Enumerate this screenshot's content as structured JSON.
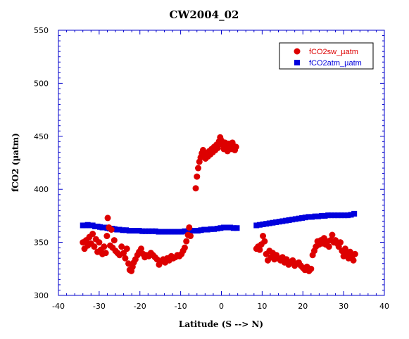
{
  "chart_data": {
    "type": "scatter",
    "title": "CW2004_02",
    "xlabel": "Latitude (S --> N)",
    "ylabel": "fCO2 (µatm)",
    "xlim": [
      -40,
      40
    ],
    "ylim": [
      300,
      550
    ],
    "xticks": [
      -40,
      -30,
      -20,
      -10,
      0,
      10,
      20,
      30,
      40
    ],
    "yticks": [
      300,
      350,
      400,
      450,
      500,
      550
    ],
    "grid": false,
    "legend_position": "top-right",
    "series": [
      {
        "name": "fCO2sw_µatm",
        "color": "#dd0000",
        "marker": "circle",
        "points": [
          [
            -34,
            350
          ],
          [
            -33.6,
            344
          ],
          [
            -33.2,
            352
          ],
          [
            -32.8,
            347
          ],
          [
            -32.4,
            355
          ],
          [
            -32,
            349
          ],
          [
            -31.6,
            358
          ],
          [
            -31.2,
            346
          ],
          [
            -30.8,
            353
          ],
          [
            -30.4,
            341
          ],
          [
            -30,
            350
          ],
          [
            -29.6,
            343
          ],
          [
            -29.2,
            339
          ],
          [
            -28.8,
            346
          ],
          [
            -28.4,
            340
          ],
          [
            -28.1,
            356
          ],
          [
            -27.9,
            373
          ],
          [
            -27.6,
            364
          ],
          [
            -27.3,
            347
          ],
          [
            -27,
            362
          ],
          [
            -26.7,
            345
          ],
          [
            -26.3,
            352
          ],
          [
            -26,
            342
          ],
          [
            -25.5,
            340
          ],
          [
            -25,
            338
          ],
          [
            -24.5,
            346
          ],
          [
            -24,
            340
          ],
          [
            -23.6,
            335
          ],
          [
            -23.2,
            344
          ],
          [
            -22.8,
            330
          ],
          [
            -22.5,
            324
          ],
          [
            -22.1,
            323
          ],
          [
            -21.8,
            327
          ],
          [
            -21.5,
            331
          ],
          [
            -21.1,
            334
          ],
          [
            -20.6,
            338
          ],
          [
            -20.2,
            341
          ],
          [
            -19.7,
            344
          ],
          [
            -19.2,
            339
          ],
          [
            -18.8,
            336
          ],
          [
            -18.3,
            338
          ],
          [
            -17.8,
            337
          ],
          [
            -17.3,
            340
          ],
          [
            -16.8,
            338
          ],
          [
            -16.3,
            336
          ],
          [
            -15.8,
            334
          ],
          [
            -15.3,
            329
          ],
          [
            -14.8,
            332
          ],
          [
            -14.3,
            334
          ],
          [
            -13.8,
            331
          ],
          [
            -13.3,
            335
          ],
          [
            -12.8,
            333
          ],
          [
            -12.3,
            337
          ],
          [
            -11.8,
            335
          ],
          [
            -11.3,
            336
          ],
          [
            -10.8,
            338
          ],
          [
            -10.3,
            337
          ],
          [
            -9.8,
            339
          ],
          [
            -9.4,
            342
          ],
          [
            -9,
            345
          ],
          [
            -8.6,
            351
          ],
          [
            -8.2,
            357
          ],
          [
            -7.9,
            364
          ],
          [
            -7.6,
            356
          ],
          [
            -6.3,
            401
          ],
          [
            -6,
            412
          ],
          [
            -5.7,
            420
          ],
          [
            -5.4,
            426
          ],
          [
            -5.1,
            430
          ],
          [
            -4.8,
            434
          ],
          [
            -4.5,
            437
          ],
          [
            -4.2,
            432
          ],
          [
            -3.9,
            429
          ],
          [
            -3.6,
            434
          ],
          [
            -3.3,
            431
          ],
          [
            -3,
            436
          ],
          [
            -2.7,
            433
          ],
          [
            -2.4,
            438
          ],
          [
            -2.1,
            435
          ],
          [
            -1.8,
            440
          ],
          [
            -1.5,
            437
          ],
          [
            -1.2,
            442
          ],
          [
            -0.9,
            439
          ],
          [
            -0.6,
            445
          ],
          [
            -0.3,
            449
          ],
          [
            0,
            446
          ],
          [
            0.3,
            442
          ],
          [
            0.6,
            438
          ],
          [
            0.9,
            444
          ],
          [
            1.2,
            440
          ],
          [
            1.5,
            436
          ],
          [
            1.8,
            443
          ],
          [
            2.1,
            441
          ],
          [
            2.4,
            438
          ],
          [
            2.7,
            444
          ],
          [
            3,
            441
          ],
          [
            3.3,
            437
          ],
          [
            3.6,
            440
          ],
          [
            8.6,
            344
          ],
          [
            9,
            346
          ],
          [
            9.4,
            343
          ],
          [
            9.8,
            348
          ],
          [
            10.2,
            356
          ],
          [
            10.6,
            351
          ],
          [
            11,
            339
          ],
          [
            11.4,
            333
          ],
          [
            11.8,
            342
          ],
          [
            12.2,
            336
          ],
          [
            12.6,
            340
          ],
          [
            13,
            334
          ],
          [
            13.5,
            338
          ],
          [
            14,
            335
          ],
          [
            14.5,
            333
          ],
          [
            15,
            336
          ],
          [
            15.5,
            331
          ],
          [
            16,
            334
          ],
          [
            16.5,
            329
          ],
          [
            17,
            331
          ],
          [
            17.5,
            333
          ],
          [
            18,
            328
          ],
          [
            18.5,
            330
          ],
          [
            19,
            331
          ],
          [
            19.5,
            328
          ],
          [
            20,
            326
          ],
          [
            20.5,
            324
          ],
          [
            21,
            327
          ],
          [
            21.5,
            323
          ],
          [
            22,
            325
          ],
          [
            22.4,
            338
          ],
          [
            22.8,
            342
          ],
          [
            23.2,
            346
          ],
          [
            23.6,
            351
          ],
          [
            24,
            348
          ],
          [
            24.4,
            352
          ],
          [
            24.8,
            349
          ],
          [
            25.2,
            354
          ],
          [
            25.6,
            348
          ],
          [
            26,
            351
          ],
          [
            26.4,
            346
          ],
          [
            26.8,
            352
          ],
          [
            27.2,
            357
          ],
          [
            27.6,
            350
          ],
          [
            28,
            352
          ],
          [
            28.4,
            349
          ],
          [
            28.8,
            346
          ],
          [
            29.2,
            350
          ],
          [
            29.6,
            342
          ],
          [
            30,
            337
          ],
          [
            30.4,
            344
          ],
          [
            30.8,
            339
          ],
          [
            31.2,
            335
          ],
          [
            31.6,
            341
          ],
          [
            32,
            336
          ],
          [
            32.4,
            333
          ],
          [
            32.8,
            339
          ]
        ]
      },
      {
        "name": "fCO2atm_µatm",
        "color": "#0000dd",
        "marker": "square",
        "points": [
          [
            -34,
            366
          ],
          [
            -33.4,
            366
          ],
          [
            -32.8,
            366.5
          ],
          [
            -32.2,
            366
          ],
          [
            -31.6,
            366
          ],
          [
            -31,
            365
          ],
          [
            -30.4,
            365
          ],
          [
            -29.8,
            364.5
          ],
          [
            -29.2,
            364
          ],
          [
            -28.6,
            364
          ],
          [
            -28,
            363.5
          ],
          [
            -27.4,
            363
          ],
          [
            -26.8,
            363
          ],
          [
            -26.2,
            362.5
          ],
          [
            -25.6,
            362
          ],
          [
            -25,
            362
          ],
          [
            -24.2,
            361.5
          ],
          [
            -23.4,
            361.5
          ],
          [
            -22.6,
            361
          ],
          [
            -21.8,
            361
          ],
          [
            -21,
            361
          ],
          [
            -20.2,
            361
          ],
          [
            -19.4,
            360.5
          ],
          [
            -18.6,
            360.5
          ],
          [
            -17.8,
            360.5
          ],
          [
            -17,
            360.5
          ],
          [
            -16.2,
            360.5
          ],
          [
            -15.4,
            360
          ],
          [
            -14.6,
            360
          ],
          [
            -13.8,
            360
          ],
          [
            -13,
            360
          ],
          [
            -12.2,
            360
          ],
          [
            -11.4,
            360
          ],
          [
            -10.6,
            360
          ],
          [
            -9.8,
            360
          ],
          [
            -9,
            360.5
          ],
          [
            -8.2,
            360.5
          ],
          [
            -7.4,
            361
          ],
          [
            -6.6,
            361
          ],
          [
            -5.8,
            361
          ],
          [
            -5,
            361.5
          ],
          [
            -4.2,
            362
          ],
          [
            -3.4,
            362
          ],
          [
            -2.6,
            362.5
          ],
          [
            -1.8,
            362.5
          ],
          [
            -1,
            363
          ],
          [
            -0.2,
            363.5
          ],
          [
            0.6,
            364
          ],
          [
            1.4,
            364
          ],
          [
            2.2,
            364
          ],
          [
            3,
            363.5
          ],
          [
            3.8,
            363.5
          ],
          [
            8.6,
            366
          ],
          [
            9.4,
            366.5
          ],
          [
            10.2,
            367
          ],
          [
            11,
            367.5
          ],
          [
            11.8,
            368
          ],
          [
            12.6,
            368.5
          ],
          [
            13.4,
            369
          ],
          [
            14.2,
            369.5
          ],
          [
            15,
            370
          ],
          [
            15.8,
            370.5
          ],
          [
            16.6,
            371
          ],
          [
            17.4,
            371.5
          ],
          [
            18.2,
            372
          ],
          [
            19,
            372.5
          ],
          [
            19.8,
            373
          ],
          [
            20.6,
            373.5
          ],
          [
            21.4,
            374
          ],
          [
            22.2,
            374
          ],
          [
            23,
            374.5
          ],
          [
            23.8,
            374.5
          ],
          [
            24.6,
            375
          ],
          [
            25.4,
            375
          ],
          [
            26.2,
            375.5
          ],
          [
            27,
            375.5
          ],
          [
            27.8,
            375.5
          ],
          [
            28.6,
            375.5
          ],
          [
            29.4,
            375.5
          ],
          [
            30.2,
            375.5
          ],
          [
            31,
            375.5
          ],
          [
            31.8,
            376
          ],
          [
            32.6,
            377
          ]
        ]
      }
    ]
  }
}
